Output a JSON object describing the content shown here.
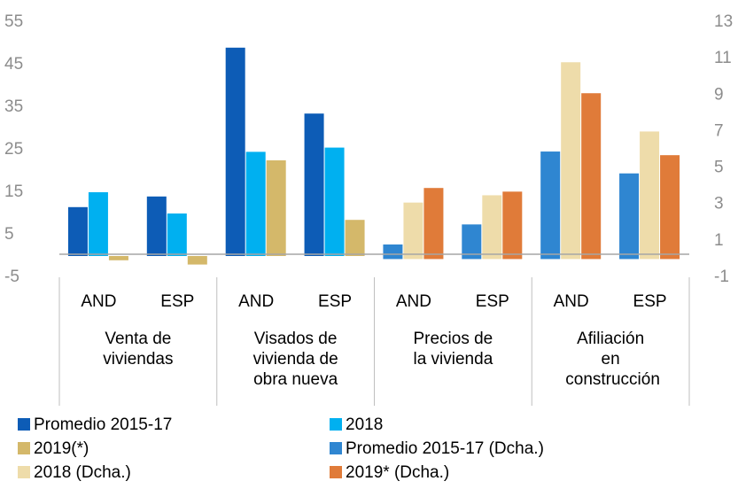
{
  "chart_data": {
    "type": "bar",
    "categories": [
      "AND",
      "ESP",
      "AND",
      "ESP",
      "AND",
      "ESP",
      "AND",
      "ESP"
    ],
    "groups": [
      "Venta de viviendas",
      "Visados de vivienda de obra nueva",
      "Precios de la vivienda",
      "Afiliación en construcción"
    ],
    "series": [
      {
        "name": "Promedio 2015-17",
        "color": "#0d5cb6",
        "values": [
          11.5,
          14,
          49,
          33.5,
          null,
          null,
          null,
          null
        ]
      },
      {
        "name": "2018",
        "color": "#00b0f0",
        "values": [
          15,
          10,
          24.5,
          25.5,
          null,
          null,
          null,
          null
        ]
      },
      {
        "name": "2019(*)",
        "color": "#d4b86a",
        "values": [
          -1,
          -2,
          22.5,
          8.5,
          null,
          null,
          null,
          null
        ]
      },
      {
        "name": "Promedio 2015-17 (Dcha.)",
        "color": "#2f86d1",
        "axis": "y2",
        "values": [
          null,
          null,
          null,
          null,
          0.8,
          1.9,
          5.9,
          4.7
        ]
      },
      {
        "name": "2018 (Dcha.)",
        "color": "#eedcaa",
        "axis": "y2",
        "values": [
          null,
          null,
          null,
          null,
          3.1,
          3.5,
          10.8,
          7.0
        ]
      },
      {
        "name": "2019* (Dcha.)",
        "color": "#e07b39",
        "axis": "y2",
        "values": [
          null,
          null,
          null,
          null,
          3.9,
          3.7,
          9.1,
          5.7
        ]
      }
    ],
    "ylim": [
      -5,
      55
    ],
    "yticks": [
      -5,
      5,
      15,
      25,
      35,
      45,
      55
    ],
    "y2lim": [
      -1,
      13
    ],
    "y2ticks": [
      -1,
      1,
      3,
      5,
      7,
      9,
      11,
      13
    ],
    "grid": false,
    "legend": "bottom"
  }
}
